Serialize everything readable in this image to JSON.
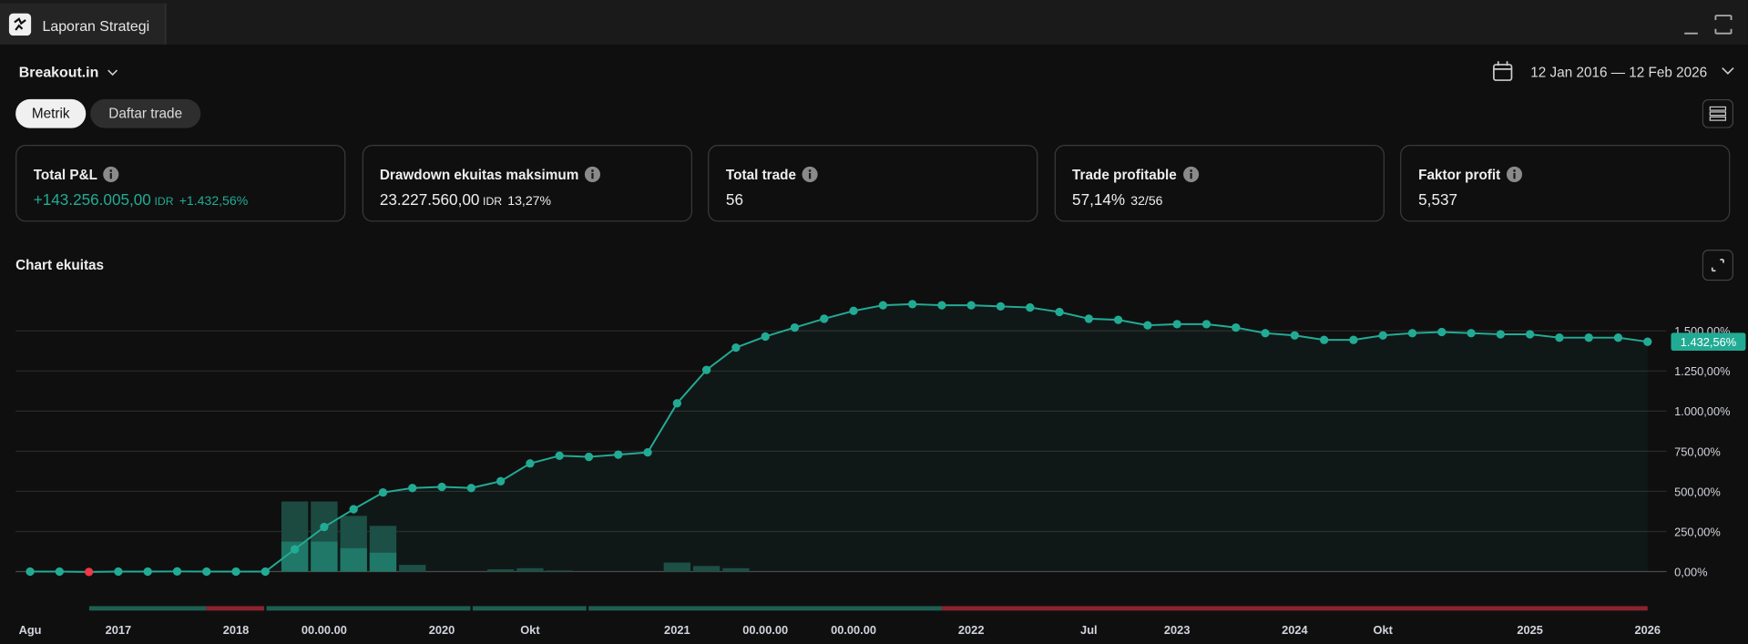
{
  "header": {
    "tab_title": "Laporan Strategi"
  },
  "strategy": "Breakout.in",
  "date_range": "12 Jan 2016 — 12 Feb 2026",
  "tabs": [
    "Metrik",
    "Daftar trade"
  ],
  "metrics": [
    {
      "label": "Total P&L",
      "value": "+143.256.005,00",
      "unit": "IDR",
      "extra": "+1.432,56%",
      "color": "#22ab94"
    },
    {
      "label": "Drawdown ekuitas maksimum",
      "value": "23.227.560,00",
      "unit": "IDR",
      "extra": "13,27%"
    },
    {
      "label": "Total trade",
      "value": "56"
    },
    {
      "label": "Trade profitable",
      "value": "57,14%",
      "extra": "32/56"
    },
    {
      "label": "Faktor profit",
      "value": "5,537"
    }
  ],
  "chart_data": {
    "type": "line",
    "title": "Chart ekuitas",
    "categories": [
      "Agu",
      null,
      null,
      "2017",
      null,
      null,
      null,
      "2018",
      null,
      null,
      "00.00.00",
      null,
      null,
      null,
      "2020",
      null,
      null,
      "Okt",
      null,
      null,
      null,
      null,
      "2021",
      null,
      null,
      "00.00.00",
      null,
      null,
      "00.00.00",
      null,
      null,
      null,
      "2022",
      null,
      null,
      null,
      "Jul",
      null,
      null,
      "2023",
      null,
      null,
      null,
      "2024",
      null,
      null,
      "Okt",
      null,
      null,
      null,
      null,
      "2025",
      null,
      null,
      null,
      "2026"
    ],
    "values": [
      0,
      0,
      -2,
      0,
      0,
      1,
      0,
      0,
      0,
      139,
      278,
      389,
      493,
      521,
      528,
      521,
      563,
      674,
      722,
      715,
      729,
      743,
      1049,
      1257,
      1396,
      1465,
      1521,
      1576,
      1625,
      1660,
      1667,
      1660,
      1660,
      1653,
      1646,
      1618,
      1576,
      1569,
      1535,
      1542,
      1542,
      1521,
      1486,
      1472,
      1444,
      1444,
      1472,
      1486,
      1493,
      1486,
      1479,
      1479,
      1458,
      1458,
      1458,
      1432.56
    ],
    "color": "#22ab94",
    "negative_color": "#f23645",
    "last_value_label": "1.432,56%",
    "bars": {
      "color": "#1c4a40",
      "inner_color": "#1f7565",
      "values": [
        null,
        null,
        null,
        null,
        null,
        null,
        null,
        null,
        null,
        437,
        437,
        347,
        285,
        42,
        null,
        null,
        14,
        21,
        7,
        null,
        null,
        null,
        56,
        35,
        21,
        null,
        null,
        null,
        null,
        null,
        null,
        null,
        null,
        null,
        null,
        null,
        null,
        null,
        null,
        null,
        null,
        null,
        null,
        null,
        null,
        null,
        null,
        null,
        null,
        null,
        null,
        null,
        null,
        null,
        null,
        null
      ],
      "inner_values": [
        null,
        null,
        null,
        null,
        null,
        null,
        null,
        null,
        null,
        187,
        187,
        146,
        118,
        null,
        null,
        null,
        null,
        null,
        null,
        null,
        null,
        null,
        null,
        null,
        null,
        null,
        null,
        null,
        null,
        null,
        null,
        null,
        null,
        null,
        null,
        null,
        null,
        null,
        null,
        null,
        null,
        null,
        null,
        null,
        null,
        null,
        null,
        null,
        null,
        null,
        null,
        null,
        null,
        null,
        null,
        null
      ]
    },
    "ylim": [
      -30,
      1750
    ],
    "yticks": [
      {
        "value": 0,
        "label": "0,00%"
      },
      {
        "value": 250,
        "label": "250,00%"
      },
      {
        "value": 500,
        "label": "500,00%"
      },
      {
        "value": 750,
        "label": "750,00%"
      },
      {
        "value": 1000,
        "label": "1.000,00%"
      },
      {
        "value": 1250,
        "label": "1.250,00%"
      },
      {
        "value": 1500,
        "label": "1.500,00%"
      }
    ],
    "grid": true
  }
}
